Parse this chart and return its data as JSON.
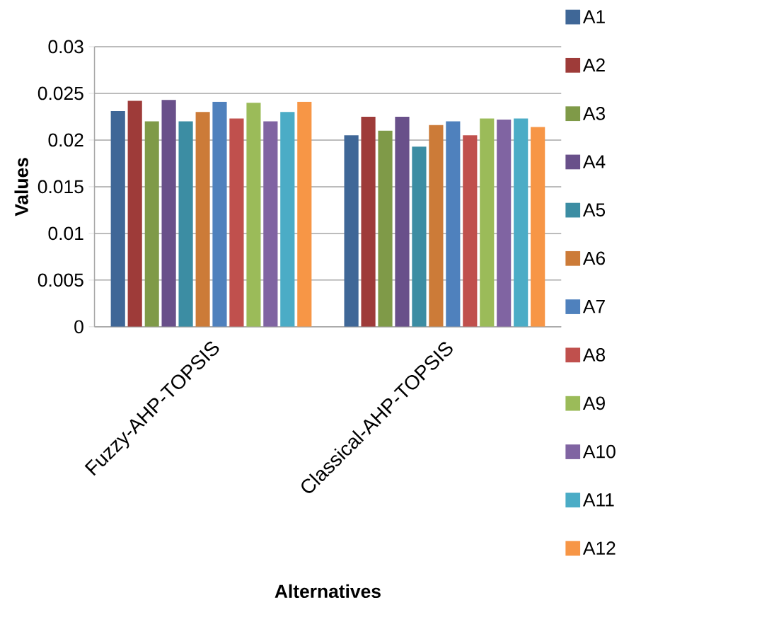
{
  "chart_data": {
    "type": "bar",
    "xlabel": "Alternatives",
    "ylabel": "Values",
    "categories": [
      "Fuzzy-AHP-TOPSIS",
      "Classical-AHP-TOPSIS"
    ],
    "series": [
      {
        "name": "A1",
        "color": "#3f6797",
        "values": [
          0.0231,
          0.0205
        ]
      },
      {
        "name": "A2",
        "color": "#9e3b39",
        "values": [
          0.0242,
          0.0225
        ]
      },
      {
        "name": "A3",
        "color": "#7f9a48",
        "values": [
          0.022,
          0.021
        ]
      },
      {
        "name": "A4",
        "color": "#69508a",
        "values": [
          0.0243,
          0.0225
        ]
      },
      {
        "name": "A5",
        "color": "#3c8da3",
        "values": [
          0.022,
          0.0193
        ]
      },
      {
        "name": "A6",
        "color": "#cc7b38",
        "values": [
          0.023,
          0.0216
        ]
      },
      {
        "name": "A7",
        "color": "#4f81bd",
        "values": [
          0.0241,
          0.022
        ]
      },
      {
        "name": "A8",
        "color": "#c0504d",
        "values": [
          0.0223,
          0.0205
        ]
      },
      {
        "name": "A9",
        "color": "#9bbb59",
        "values": [
          0.024,
          0.0223
        ]
      },
      {
        "name": "A10",
        "color": "#8064a2",
        "values": [
          0.022,
          0.0222
        ]
      },
      {
        "name": "A11",
        "color": "#4bacc6",
        "values": [
          0.023,
          0.0223
        ]
      },
      {
        "name": "A12",
        "color": "#f79646",
        "values": [
          0.0241,
          0.0214
        ]
      }
    ],
    "ylim": [
      0,
      0.03
    ],
    "yticks": [
      0,
      0.005,
      0.01,
      0.015,
      0.02,
      0.025,
      0.03
    ],
    "grid": "y",
    "legend": "right"
  }
}
